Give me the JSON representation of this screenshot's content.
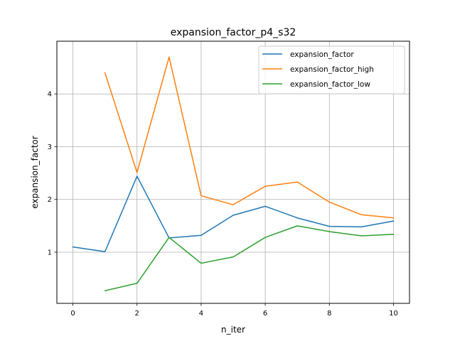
{
  "chart_data": {
    "type": "line",
    "title": "expansion_factor_p4_s32",
    "xlabel": "n_iter",
    "ylabel": "expansion_factor",
    "xlim": [
      -0.5,
      10.5
    ],
    "ylim": [
      0.03,
      5.0
    ],
    "xticks": [
      0,
      2,
      4,
      6,
      8,
      10
    ],
    "yticks": [
      1,
      2,
      3,
      4
    ],
    "grid": true,
    "legend_position": "top-right",
    "series": [
      {
        "name": "expansion_factor",
        "color": "#1f77b4",
        "x": [
          0,
          1,
          2,
          3,
          4,
          5,
          6,
          7,
          8,
          9,
          10
        ],
        "values": [
          1.1,
          1.01,
          2.44,
          1.27,
          1.32,
          1.7,
          1.87,
          1.65,
          1.49,
          1.48,
          1.59
        ]
      },
      {
        "name": "expansion_factor_high",
        "color": "#ff7f0e",
        "x": [
          1,
          2,
          3,
          4,
          5,
          6,
          7,
          8,
          9,
          10
        ],
        "values": [
          4.4,
          2.51,
          4.7,
          2.07,
          1.9,
          2.25,
          2.33,
          1.95,
          1.71,
          1.65
        ]
      },
      {
        "name": "expansion_factor_low",
        "color": "#2ca02c",
        "x": [
          1,
          2,
          3,
          4,
          5,
          6,
          7,
          8,
          9,
          10
        ],
        "values": [
          0.27,
          0.41,
          1.28,
          0.79,
          0.91,
          1.28,
          1.5,
          1.39,
          1.31,
          1.34
        ]
      }
    ]
  }
}
